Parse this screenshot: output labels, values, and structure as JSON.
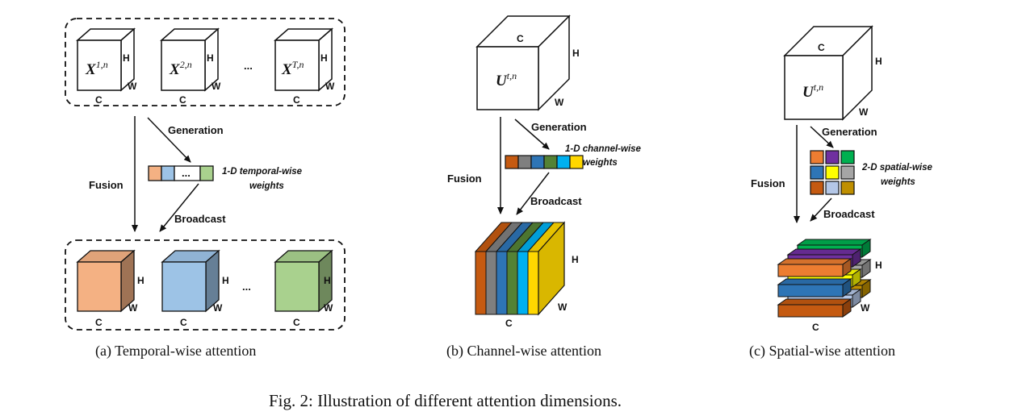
{
  "panels": {
    "a": {
      "inputs": [
        {
          "base": "X",
          "sup": "1,n"
        },
        {
          "base": "X",
          "sup": "2,n"
        },
        {
          "base": "X",
          "sup": "T,n"
        }
      ],
      "ellipsis": "...",
      "dims": {
        "c": "C",
        "h": "H",
        "w": "W"
      },
      "generation": "Generation",
      "fusion": "Fusion",
      "broadcast": "Broadcast",
      "weights_line1": "1-D temporal-wise",
      "weights_line2": "weights",
      "weights_ellipsis": "...",
      "weight_colors": [
        "#f4b183",
        "#9dc3e6",
        "#ffffff",
        "#a9d18e"
      ],
      "output_colors": [
        "#f4b183",
        "#9dc3e6",
        "#a9d18e"
      ],
      "caption": "(a)  Temporal-wise attention"
    },
    "b": {
      "input": {
        "base": "U",
        "sup": "t,n"
      },
      "dims": {
        "c": "C",
        "h": "H",
        "w": "W"
      },
      "generation": "Generation",
      "fusion": "Fusion",
      "broadcast": "Broadcast",
      "weights_line1": "1-D channel-wise",
      "weights_line2": "weights",
      "weight_colors": [
        "#c55a11",
        "#7f7f7f",
        "#2e75b6",
        "#548235",
        "#00b0f0",
        "#ffd700"
      ],
      "caption": "(b)  Channel-wise attention"
    },
    "c": {
      "input": {
        "base": "U",
        "sup": "t,n"
      },
      "dims": {
        "c": "C",
        "h": "H",
        "w": "W"
      },
      "generation": "Generation",
      "fusion": "Fusion",
      "broadcast": "Broadcast",
      "weights_line1": "2-D spatial-wise",
      "weights_line2": "weights",
      "weight_colors": [
        "#ed7d31",
        "#7030a0",
        "#00b050",
        "#2e75b6",
        "#ffff00",
        "#a5a5a5",
        "#c55a11",
        "#b4c7e7",
        "#bf8f00"
      ],
      "caption": "(c)  Spatial-wise attention"
    }
  },
  "figure_caption": "Fig. 2: Illustration of different attention dimensions."
}
